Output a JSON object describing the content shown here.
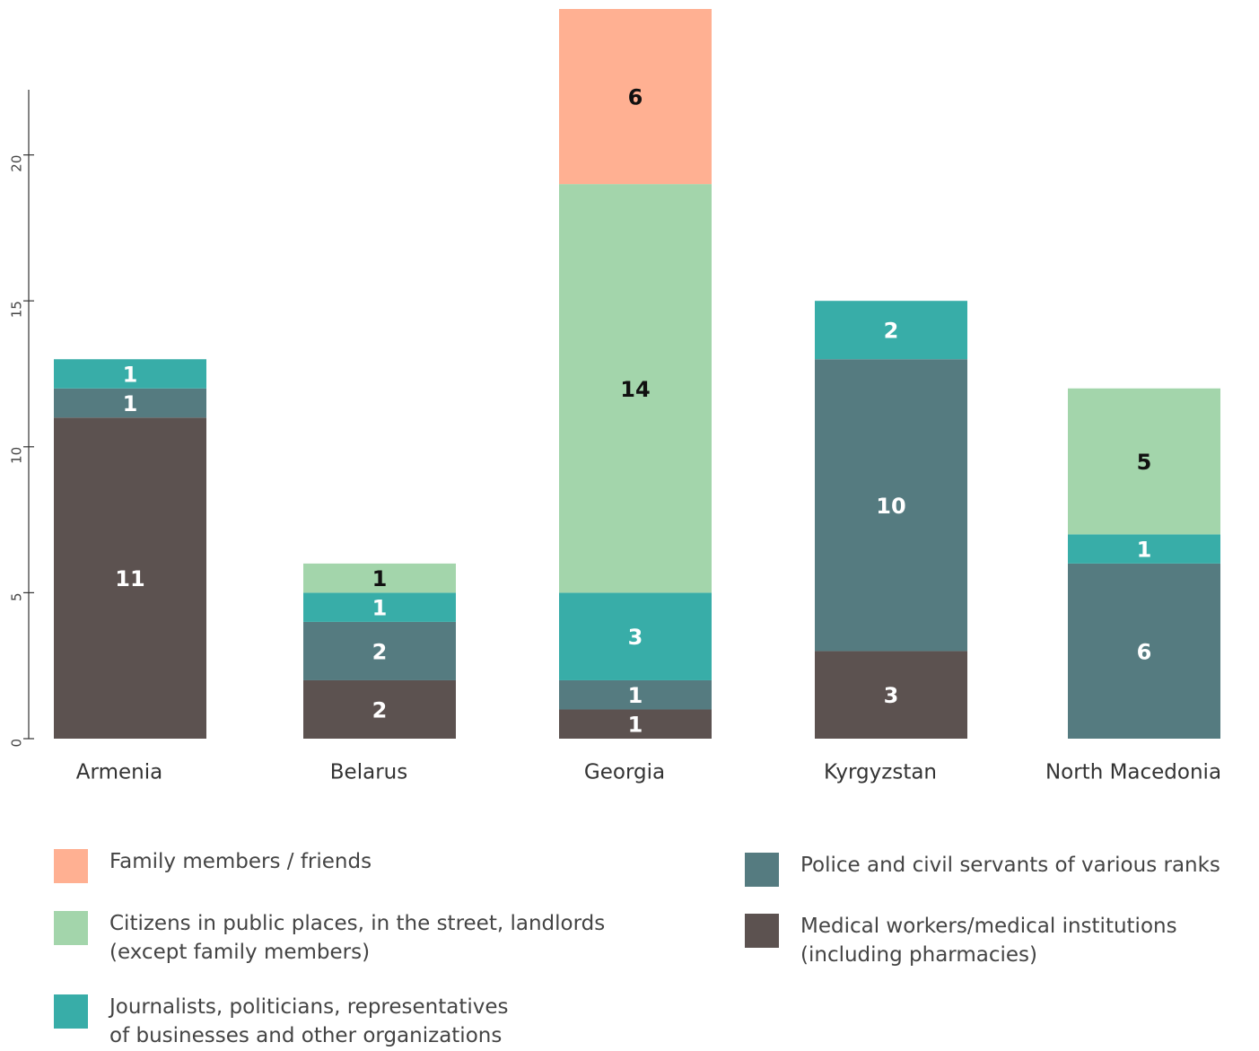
{
  "chart_data": {
    "type": "stacked_bar",
    "categories": [
      "Armenia",
      "Belarus",
      "Georgia",
      "Kyrgyzstan",
      "North Macedonia"
    ],
    "series": [
      {
        "name": "Family members / friends",
        "color": "#ffb092",
        "values": [
          null,
          null,
          6,
          null,
          null
        ]
      },
      {
        "name": "Citizens in public places, in the street, landlords (except family members)",
        "color": "#a3d5ab",
        "values": [
          null,
          1,
          14,
          null,
          5
        ]
      },
      {
        "name": "Journalists, politicians, representatives of businesses and other organizations",
        "color": "#38ada8",
        "values": [
          1,
          1,
          3,
          2,
          1
        ]
      },
      {
        "name": "Police and civil servants of various ranks",
        "color": "#557b80",
        "values": [
          1,
          2,
          1,
          10,
          6
        ]
      },
      {
        "name": "Medical workers/medical institutions (including pharmacies)",
        "color": "#5c5250",
        "values": [
          11,
          2,
          1,
          3,
          null
        ]
      }
    ],
    "ylim": [
      0,
      25
    ],
    "yticks": [
      0,
      5,
      10,
      15,
      20
    ]
  }
}
